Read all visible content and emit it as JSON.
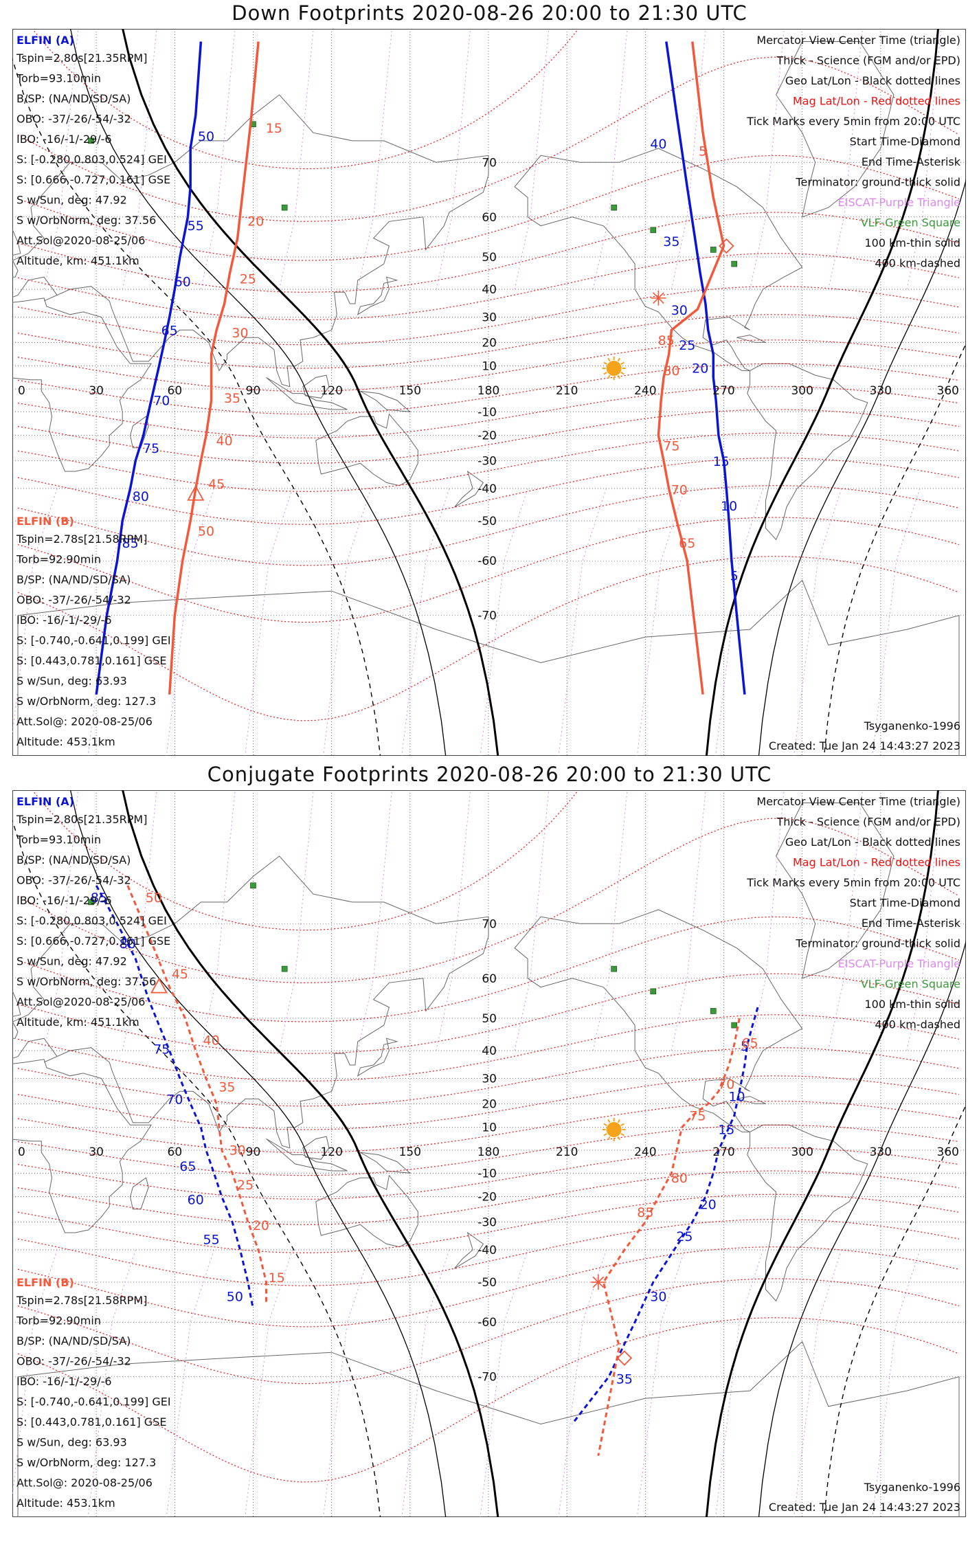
{
  "colors": {
    "elfin_a": "#0a14d6",
    "elfin_b": "#f4583a",
    "geo_grid": "#555555",
    "mag_grid": "#ee1111",
    "eiscat": "#dd88ee",
    "vlf": "#3a9a3a",
    "terminator": "#000000",
    "sun": "#f5a31a"
  },
  "panels": [
    {
      "id": "down",
      "title": "Down Footprints 2020-08-26 20:00 to 21:30 UTC",
      "elfin_a": {
        "name": "ELFIN (A)",
        "lines": [
          "Tspin=2.80s[21.35RPM]",
          "Torb=93.10min",
          "B/SP: (NA/ND/SD/SA)",
          "OBO: -37/-26/-54/-32",
          "IBO: -16/-1/-29/-6",
          "S: [-0.280,0.803,0.524] GEI",
          "S: [0.666,-0.727,0.161] GSE",
          "S w/Sun, deg: 47.92",
          "S w/OrbNorm, deg: 37.56",
          "Att.Sol@2020-08-25/06",
          "Altitude, km: 451.1km"
        ]
      },
      "elfin_b": {
        "name": "ELFIN (B)",
        "lines": [
          "Tspin=2.78s[21.58RPM]",
          "Torb=92.90min",
          "B/SP: (NA/ND/SD/SA)",
          "OBO: -37/-26/-54/-32",
          "IBO: -16/-1/-29/-6",
          "S: [-0.740,-0.641,0.199] GEI",
          "S: [0.443,0.781,0.161] GSE",
          "S w/Sun, deg: 63.93",
          "S w/OrbNorm, deg: 127.3",
          "Att.Sol@: 2020-08-25/06",
          "Altitude: 453.1km"
        ]
      },
      "legend": [
        "Mercator View Center Time (triangle)",
        "Thick - Science (FGM and/or EPD)",
        "Geo Lat/Lon - Black dotted lines",
        "Mag Lat/Lon - Red dotted lines",
        "Tick Marks every 5min from 20:00 UTC",
        "Start Time-Diamond",
        "End Time-Asterisk",
        "Terminator: ground-thick solid",
        "EISCAT-Purple Triangle",
        "VLF-Green Square",
        "100 km-thin solid",
        "400 km-dashed"
      ],
      "footer_left": "Tsyganenko-1996",
      "footer_right": "Created: Tue Jan 24 14:43:27 2023",
      "sun": {
        "lon": 228,
        "lat": 9
      },
      "track_a": {
        "style": "solid",
        "points": [
          [
            70,
            82
          ],
          [
            68,
            76
          ],
          [
            66,
            72
          ],
          [
            66,
            66
          ],
          [
            65,
            60
          ],
          [
            62,
            50
          ],
          [
            60,
            40
          ],
          [
            58,
            30
          ],
          [
            56,
            20
          ],
          [
            54,
            10
          ],
          [
            52,
            0
          ],
          [
            50,
            -10
          ],
          [
            48,
            -20
          ],
          [
            45,
            -30
          ],
          [
            43,
            -40
          ],
          [
            40,
            -50
          ],
          [
            38,
            -60
          ],
          [
            34,
            -70
          ],
          [
            30,
            -79
          ]
        ],
        "labels": [
          {
            "t": "50",
            "lon": 72,
            "lat": 73
          },
          {
            "t": "55",
            "lon": 68,
            "lat": 57
          },
          {
            "t": "60",
            "lon": 63,
            "lat": 41
          },
          {
            "t": "65",
            "lon": 58,
            "lat": 23
          },
          {
            "t": "70",
            "lon": 55,
            "lat": -7
          },
          {
            "t": "75",
            "lon": 51,
            "lat": -27
          },
          {
            "t": "80",
            "lon": 47,
            "lat": -44
          },
          {
            "t": "85",
            "lon": 43,
            "lat": -57
          }
        ]
      },
      "track_b": {
        "style": "solid",
        "points": [
          [
            92,
            82
          ],
          [
            89,
            75
          ],
          [
            86,
            65
          ],
          [
            84,
            55
          ],
          [
            81,
            45
          ],
          [
            79,
            35
          ],
          [
            76,
            25
          ],
          [
            74,
            15
          ],
          [
            74,
            5
          ],
          [
            74,
            -5
          ],
          [
            72,
            -20
          ],
          [
            70,
            -30
          ],
          [
            68,
            -40
          ],
          [
            66,
            -50
          ],
          [
            63,
            -60
          ],
          [
            60,
            -70
          ],
          [
            58,
            -79
          ]
        ],
        "labels": [
          {
            "t": "15",
            "lon": 98,
            "lat": 74
          },
          {
            "t": "20",
            "lon": 91,
            "lat": 58
          },
          {
            "t": "25",
            "lon": 88,
            "lat": 42
          },
          {
            "t": "30",
            "lon": 85,
            "lat": 22
          },
          {
            "t": "35",
            "lon": 82,
            "lat": -6
          },
          {
            "t": "40",
            "lon": 79,
            "lat": -24
          },
          {
            "t": "45",
            "lon": 76,
            "lat": -40
          },
          {
            "t": "50",
            "lon": 72,
            "lat": -54
          }
        ],
        "marker": {
          "kind": "triangle",
          "lon": 68,
          "lat": -42
        }
      },
      "track_a2": {
        "style": "solid",
        "points": [
          [
            248,
            82
          ],
          [
            252,
            76
          ],
          [
            256,
            66
          ],
          [
            259,
            55
          ],
          [
            261,
            45
          ],
          [
            263,
            35
          ],
          [
            264,
            25
          ],
          [
            266,
            15
          ],
          [
            266,
            5
          ],
          [
            267,
            -5
          ],
          [
            268,
            -20
          ],
          [
            270,
            -30
          ],
          [
            271,
            -40
          ],
          [
            272,
            -50
          ],
          [
            273,
            -60
          ],
          [
            275,
            -70
          ],
          [
            278,
            -79
          ]
        ],
        "labels": [
          {
            "t": "40",
            "lon": 245,
            "lat": 72
          },
          {
            "t": "35",
            "lon": 250,
            "lat": 53
          },
          {
            "t": "30",
            "lon": 253,
            "lat": 31
          },
          {
            "t": "25",
            "lon": 256,
            "lat": 17
          },
          {
            "t": "20",
            "lon": 261,
            "lat": 7
          },
          {
            "t": "15",
            "lon": 269,
            "lat": -32
          },
          {
            "t": "10",
            "lon": 272,
            "lat": -47
          },
          {
            "t": "5",
            "lon": 274,
            "lat": -64
          }
        ]
      },
      "track_b2": {
        "style": "solid",
        "points": [
          [
            258,
            82
          ],
          [
            262,
            74
          ],
          [
            266,
            64
          ],
          [
            270,
            53
          ],
          [
            260,
            33
          ],
          [
            250,
            25
          ],
          [
            249,
            15
          ],
          [
            247,
            5
          ],
          [
            246,
            -5
          ],
          [
            245,
            -20
          ],
          [
            247,
            -30
          ],
          [
            249,
            -40
          ],
          [
            252,
            -50
          ],
          [
            256,
            -60
          ],
          [
            262,
            -79
          ]
        ],
        "labels": [
          {
            "t": "5",
            "lon": 262,
            "lat": 71
          },
          {
            "t": "85",
            "lon": 248,
            "lat": 19
          },
          {
            "t": "80",
            "lon": 250,
            "lat": 6
          },
          {
            "t": "75",
            "lon": 250,
            "lat": -26
          },
          {
            "t": "70",
            "lon": 253,
            "lat": -42
          },
          {
            "t": "65",
            "lon": 256,
            "lat": -57
          }
        ],
        "diamond": {
          "lon": 271,
          "lat": 53
        },
        "asterisk": {
          "lon": 245,
          "lat": 37
        }
      }
    },
    {
      "id": "conjugate",
      "title": "Conjugate Footprints 2020-08-26 20:00 to 21:30 UTC",
      "elfin_a": {
        "name": "ELFIN (A)",
        "lines": [
          "Tspin=2.80s[21.35RPM]",
          "Torb=93.10min",
          "B/SP: (NA/ND/SD/SA)",
          "OBO: -37/-26/-54/-32",
          "IBO: -16/-1/-29/-6",
          "S: [-0.280,0.803,0.524] GEI",
          "S: [0.666,-0.727,0.161] GSE",
          "S w/Sun, deg: 47.92",
          "S w/OrbNorm, deg: 37.56",
          "Att.Sol@2020-08-25/06",
          "Altitude, km: 451.1km"
        ]
      },
      "elfin_b": {
        "name": "ELFIN (B)",
        "lines": [
          "Tspin=2.78s[21.58RPM]",
          "Torb=92.90min",
          "B/SP: (NA/ND/SD/SA)",
          "OBO: -37/-26/-54/-32",
          "IBO: -16/-1/-29/-6",
          "S: [-0.740,-0.641,0.199] GEI",
          "S: [0.443,0.781,0.161] GSE",
          "S w/Sun, deg: 63.93",
          "S w/OrbNorm, deg: 127.3",
          "Att.Sol@: 2020-08-25/06",
          "Altitude: 453.1km"
        ]
      },
      "legend": [
        "Mercator View Center Time (triangle)",
        "Thick - Science (FGM and/or EPD)",
        "Geo Lat/Lon - Black dotted lines",
        "Mag Lat/Lon - Red dotted lines",
        "Tick Marks every 5min from 20:00 UTC",
        "Start Time-Diamond",
        "End Time-Asterisk",
        "Terminator: ground-thick solid",
        "EISCAT-Purple Triangle",
        "VLF-Green Square",
        "100 km-thin solid",
        "400 km-dashed"
      ],
      "footer_left": "Tsyganenko-1996",
      "footer_right": "Created: Tue Jan 24 14:43:27 2023",
      "sun": {
        "lon": 228,
        "lat": 9
      },
      "track_a": {
        "style": "dashed",
        "points": [
          [
            30,
            75
          ],
          [
            38,
            70
          ],
          [
            45,
            64
          ],
          [
            50,
            55
          ],
          [
            54,
            48
          ],
          [
            58,
            40
          ],
          [
            62,
            30
          ],
          [
            66,
            20
          ],
          [
            70,
            10
          ],
          [
            72,
            0
          ],
          [
            75,
            -10
          ],
          [
            78,
            -20
          ],
          [
            82,
            -30
          ],
          [
            85,
            -40
          ],
          [
            88,
            -50
          ],
          [
            90,
            -57
          ]
        ],
        "labels": [
          {
            "t": "85",
            "lon": 31,
            "lat": 73
          },
          {
            "t": "80",
            "lon": 42,
            "lat": 66
          },
          {
            "t": "75",
            "lon": 55,
            "lat": 39
          },
          {
            "t": "70",
            "lon": 60,
            "lat": 20
          },
          {
            "t": "65",
            "lon": 65,
            "lat": -9
          },
          {
            "t": "60",
            "lon": 68,
            "lat": -23
          },
          {
            "t": "55",
            "lon": 74,
            "lat": -38
          },
          {
            "t": "50",
            "lon": 83,
            "lat": -55
          }
        ]
      },
      "track_b": {
        "style": "dashed",
        "points": [
          [
            42,
            75
          ],
          [
            52,
            66
          ],
          [
            58,
            58
          ],
          [
            64,
            50
          ],
          [
            68,
            40
          ],
          [
            72,
            30
          ],
          [
            76,
            20
          ],
          [
            77,
            10
          ],
          [
            78,
            0
          ],
          [
            82,
            -10
          ],
          [
            85,
            -20
          ],
          [
            88,
            -30
          ],
          [
            92,
            -40
          ],
          [
            95,
            -50
          ],
          [
            95,
            -56
          ]
        ],
        "labels": [
          {
            "t": "50",
            "lon": 52,
            "lat": 73
          },
          {
            "t": "45",
            "lon": 62,
            "lat": 60
          },
          {
            "t": "40",
            "lon": 74,
            "lat": 42
          },
          {
            "t": "35",
            "lon": 80,
            "lat": 25
          },
          {
            "t": "30",
            "lon": 84,
            "lat": -2
          },
          {
            "t": "25",
            "lon": 87,
            "lat": -17
          },
          {
            "t": "20",
            "lon": 93,
            "lat": -33
          },
          {
            "t": "15",
            "lon": 99,
            "lat": -50
          }
        ],
        "marker": {
          "kind": "triangle",
          "lon": 54,
          "lat": 58
        }
      },
      "track_a2": {
        "style": "dashed",
        "points": [
          [
            283,
            53
          ],
          [
            281,
            48
          ],
          [
            279,
            42
          ],
          [
            278,
            35
          ],
          [
            276,
            25
          ],
          [
            274,
            15
          ],
          [
            272,
            10
          ],
          [
            268,
            0
          ],
          [
            266,
            -10
          ],
          [
            263,
            -20
          ],
          [
            258,
            -30
          ],
          [
            251,
            -40
          ],
          [
            243,
            -50
          ],
          [
            236,
            -60
          ],
          [
            226,
            -70
          ],
          [
            212,
            -76
          ]
        ],
        "labels": [
          {
            "t": "5",
            "lon": 278,
            "lat": 40
          },
          {
            "t": "10",
            "lon": 275,
            "lat": 21
          },
          {
            "t": "15",
            "lon": 271,
            "lat": 7
          },
          {
            "t": "20",
            "lon": 264,
            "lat": -25
          },
          {
            "t": "25",
            "lon": 255,
            "lat": -37
          },
          {
            "t": "30",
            "lon": 245,
            "lat": -55
          },
          {
            "t": "35",
            "lon": 232,
            "lat": -71
          }
        ]
      },
      "track_b2": {
        "style": "dashed",
        "points": [
          [
            276,
            50
          ],
          [
            274,
            42
          ],
          [
            272,
            35
          ],
          [
            268,
            25
          ],
          [
            264,
            20
          ],
          [
            258,
            15
          ],
          [
            254,
            10
          ],
          [
            252,
            0
          ],
          [
            250,
            -10
          ],
          [
            245,
            -20
          ],
          [
            240,
            -30
          ],
          [
            232,
            -40
          ],
          [
            224,
            -50
          ],
          [
            230,
            -65
          ],
          [
            222,
            -79
          ]
        ],
        "labels": [
          {
            "t": "65",
            "lon": 280,
            "lat": 41
          },
          {
            "t": "70",
            "lon": 271,
            "lat": 26
          },
          {
            "t": "75",
            "lon": 260,
            "lat": 13
          },
          {
            "t": "80",
            "lon": 253,
            "lat": -14
          },
          {
            "t": "85",
            "lon": 240,
            "lat": -28
          }
        ],
        "diamond": {
          "lon": 232,
          "lat": -67
        },
        "asterisk": {
          "lon": 222,
          "lat": -50
        }
      }
    }
  ],
  "axis": {
    "lon_ticks": [
      "0",
      "30",
      "60",
      "90",
      "120",
      "150",
      "180",
      "210",
      "240",
      "270",
      "300",
      "330",
      "360"
    ],
    "lat_ticks": [
      "70",
      "60",
      "50",
      "40",
      "30",
      "20",
      "10",
      "-10",
      "-20",
      "-30",
      "-40",
      "-50",
      "-60",
      "-70"
    ]
  }
}
